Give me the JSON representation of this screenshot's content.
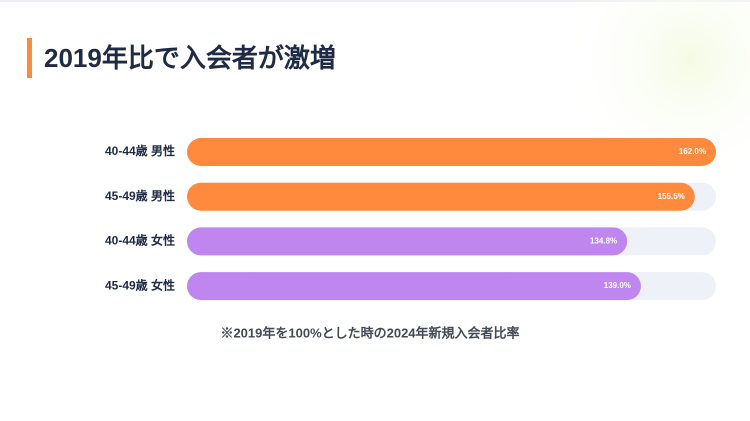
{
  "chart_data": {
    "type": "bar",
    "orientation": "horizontal",
    "title": "2019年比で入会者が激増",
    "categories": [
      "40-44歳 男性",
      "45-49歳 男性",
      "40-44歳 女性",
      "45-49歳 女性"
    ],
    "values": [
      162.0,
      155.5,
      134.8,
      139.0
    ],
    "value_labels": [
      "162.0%",
      "155.5%",
      "134.8%",
      "139.0%"
    ],
    "colors": [
      "#ff8a3d",
      "#ff8a3d",
      "#bf86f0",
      "#bf86f0"
    ],
    "track_color": "#eef1f7",
    "xlim": [
      0,
      162
    ],
    "note": "※2019年を100%とした時の2024年新規入会者比率"
  }
}
